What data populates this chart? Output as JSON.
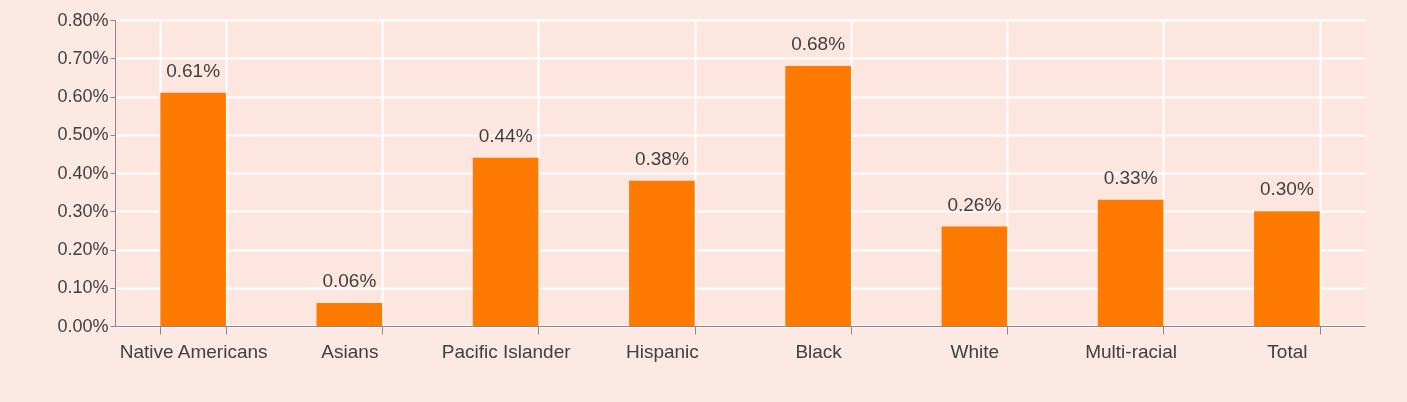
{
  "chart_data": {
    "type": "bar",
    "categories": [
      "Native Americans",
      "Asians",
      "Pacific Islander",
      "Hispanic",
      "Black",
      "White",
      "Multi-racial",
      "Total"
    ],
    "values": [
      0.61,
      0.06,
      0.44,
      0.38,
      0.68,
      0.26,
      0.33,
      0.3
    ],
    "value_labels": [
      "0.61%",
      "0.06%",
      "0.44%",
      "0.38%",
      "0.68%",
      "0.26%",
      "0.33%",
      "0.30%"
    ],
    "color": "#ff7a00",
    "ylim": [
      0,
      0.8
    ],
    "yticks": [
      {
        "value": 0,
        "label": "0.00%"
      },
      {
        "value": 0.1,
        "label": "0.10%"
      },
      {
        "value": 0.2,
        "label": "0.20%"
      },
      {
        "value": 0.3,
        "label": "0.30%"
      },
      {
        "value": 0.4,
        "label": "0.40%"
      },
      {
        "value": 0.5,
        "label": "0.50%"
      },
      {
        "value": 0.6,
        "label": "0.60%"
      },
      {
        "value": 0.7,
        "label": "0.70%"
      },
      {
        "value": 0.8,
        "label": "0.80%"
      }
    ],
    "grid": true
  }
}
